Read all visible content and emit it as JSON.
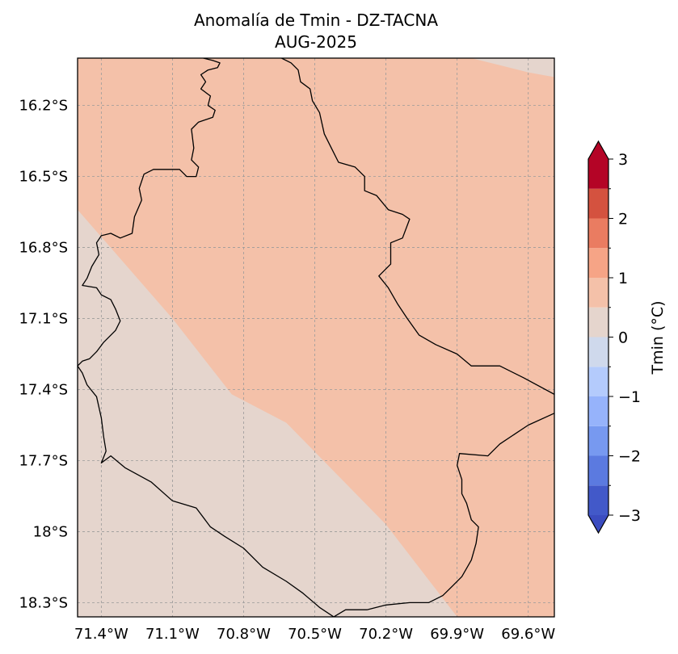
{
  "title": {
    "line1": "Anomalía de Tmin - DZ-TACNA",
    "line2": "AUG-2025"
  },
  "map": {
    "lon_range": [
      -71.5,
      -69.49
    ],
    "lat_range": [
      -18.36,
      -16.0
    ],
    "lon_ticks": [
      {
        "value": -71.4,
        "label": "71.4°W"
      },
      {
        "value": -71.1,
        "label": "71.1°W"
      },
      {
        "value": -70.8,
        "label": "70.8°W"
      },
      {
        "value": -70.5,
        "label": "70.5°W"
      },
      {
        "value": -70.2,
        "label": "70.2°W"
      },
      {
        "value": -69.9,
        "label": "69.9°W"
      },
      {
        "value": -69.6,
        "label": "69.6°W"
      }
    ],
    "lat_ticks": [
      {
        "value": -16.2,
        "label": "16.2°S"
      },
      {
        "value": -16.5,
        "label": "16.5°S"
      },
      {
        "value": -16.8,
        "label": "16.8°S"
      },
      {
        "value": -17.1,
        "label": "17.1°S"
      },
      {
        "value": -17.4,
        "label": "17.4°S"
      },
      {
        "value": -17.7,
        "label": "17.7°S"
      },
      {
        "value": -18.0,
        "label": "18°S"
      },
      {
        "value": -18.3,
        "label": "18.3°S"
      }
    ],
    "gridlines": true,
    "background_fill": {
      "level": "0.5 to 1",
      "color": "#f4c1a9"
    },
    "regions": [
      {
        "name": "anomaly-0-to-0.5",
        "color": "#e5d5cd",
        "polygon": [
          [
            -71.5,
            -16.64
          ],
          [
            -71.1,
            -17.1
          ],
          [
            -70.85,
            -17.42
          ],
          [
            -70.62,
            -17.54
          ],
          [
            -70.2,
            -17.97
          ],
          [
            -69.9,
            -18.36
          ],
          [
            -71.5,
            -18.36
          ]
        ]
      },
      {
        "name": "anomaly-0-to-0.5-corner",
        "color": "#e5d5cd",
        "polygon": [
          [
            -69.84,
            -16.0
          ],
          [
            -69.49,
            -16.0
          ],
          [
            -69.49,
            -16.08
          ],
          [
            -69.6,
            -16.06
          ]
        ]
      }
    ],
    "boundaries": [
      {
        "name": "tacna-boundary",
        "points": [
          [
            -70.97,
            -16.0
          ],
          [
            -70.93,
            -16.01
          ],
          [
            -70.9,
            -16.02
          ],
          [
            -70.91,
            -16.04
          ],
          [
            -70.95,
            -16.05
          ],
          [
            -70.98,
            -16.07
          ],
          [
            -70.96,
            -16.1
          ],
          [
            -70.98,
            -16.13
          ],
          [
            -70.94,
            -16.16
          ],
          [
            -70.95,
            -16.2
          ],
          [
            -70.92,
            -16.22
          ],
          [
            -70.93,
            -16.25
          ],
          [
            -70.99,
            -16.27
          ],
          [
            -71.02,
            -16.3
          ],
          [
            -71.01,
            -16.38
          ],
          [
            -71.02,
            -16.43
          ],
          [
            -70.99,
            -16.46
          ],
          [
            -71.0,
            -16.5
          ],
          [
            -71.04,
            -16.5
          ],
          [
            -71.07,
            -16.47
          ],
          [
            -71.12,
            -16.47
          ],
          [
            -71.18,
            -16.47
          ],
          [
            -71.22,
            -16.49
          ],
          [
            -71.24,
            -16.55
          ],
          [
            -71.23,
            -16.6
          ],
          [
            -71.26,
            -16.67
          ],
          [
            -71.27,
            -16.74
          ],
          [
            -71.32,
            -16.76
          ],
          [
            -71.36,
            -16.74
          ],
          [
            -71.4,
            -16.75
          ],
          [
            -71.42,
            -16.78
          ],
          [
            -71.41,
            -16.83
          ],
          [
            -71.44,
            -16.88
          ],
          [
            -71.46,
            -16.93
          ],
          [
            -71.48,
            -16.96
          ],
          [
            -71.42,
            -16.97
          ],
          [
            -71.4,
            -17.0
          ],
          [
            -71.36,
            -17.02
          ],
          [
            -71.34,
            -17.06
          ],
          [
            -71.32,
            -17.11
          ],
          [
            -71.34,
            -17.15
          ],
          [
            -71.39,
            -17.2
          ],
          [
            -71.42,
            -17.24
          ],
          [
            -71.45,
            -17.27
          ],
          [
            -71.48,
            -17.28
          ],
          [
            -71.5,
            -17.3
          ],
          [
            -71.48,
            -17.33
          ],
          [
            -71.46,
            -17.38
          ],
          [
            -71.42,
            -17.43
          ],
          [
            -71.4,
            -17.52
          ],
          [
            -71.39,
            -17.6
          ],
          [
            -71.38,
            -17.66
          ],
          [
            -71.4,
            -17.71
          ],
          [
            -71.36,
            -17.68
          ],
          [
            -71.3,
            -17.73
          ],
          [
            -71.19,
            -17.79
          ],
          [
            -71.1,
            -17.87
          ],
          [
            -71.0,
            -17.9
          ],
          [
            -70.94,
            -17.98
          ],
          [
            -70.88,
            -18.02
          ],
          [
            -70.8,
            -18.07
          ],
          [
            -70.72,
            -18.15
          ],
          [
            -70.62,
            -18.21
          ],
          [
            -70.55,
            -18.26
          ],
          [
            -70.48,
            -18.32
          ],
          [
            -70.42,
            -18.36
          ]
        ]
      },
      {
        "name": "tacna-east-boundary",
        "points": [
          [
            -70.42,
            -18.36
          ],
          [
            -70.37,
            -18.33
          ],
          [
            -70.28,
            -18.33
          ],
          [
            -70.2,
            -18.31
          ],
          [
            -70.1,
            -18.3
          ],
          [
            -70.02,
            -18.3
          ],
          [
            -69.96,
            -18.27
          ],
          [
            -69.92,
            -18.23
          ],
          [
            -69.88,
            -18.19
          ],
          [
            -69.84,
            -18.12
          ],
          [
            -69.82,
            -18.05
          ],
          [
            -69.81,
            -17.98
          ],
          [
            -69.84,
            -17.95
          ],
          [
            -69.86,
            -17.88
          ],
          [
            -69.88,
            -17.84
          ],
          [
            -69.88,
            -17.78
          ],
          [
            -69.9,
            -17.72
          ],
          [
            -69.89,
            -17.67
          ],
          [
            -69.77,
            -17.68
          ],
          [
            -69.72,
            -17.63
          ],
          [
            -69.6,
            -17.55
          ],
          [
            -69.49,
            -17.5
          ]
        ]
      },
      {
        "name": "tacna-northeast-boundary",
        "points": [
          [
            -70.64,
            -16.0
          ],
          [
            -70.6,
            -16.02
          ],
          [
            -70.57,
            -16.05
          ],
          [
            -70.56,
            -16.1
          ],
          [
            -70.52,
            -16.13
          ],
          [
            -70.51,
            -16.18
          ],
          [
            -70.48,
            -16.23
          ],
          [
            -70.46,
            -16.32
          ],
          [
            -70.43,
            -16.38
          ],
          [
            -70.4,
            -16.44
          ],
          [
            -70.33,
            -16.46
          ],
          [
            -70.29,
            -16.5
          ],
          [
            -70.29,
            -16.56
          ],
          [
            -70.24,
            -16.58
          ],
          [
            -70.19,
            -16.64
          ],
          [
            -70.13,
            -16.66
          ],
          [
            -70.1,
            -16.68
          ],
          [
            -70.13,
            -16.76
          ],
          [
            -70.18,
            -16.78
          ],
          [
            -70.18,
            -16.87
          ],
          [
            -70.23,
            -16.92
          ],
          [
            -70.19,
            -16.97
          ],
          [
            -70.15,
            -17.04
          ],
          [
            -70.11,
            -17.1
          ],
          [
            -70.06,
            -17.17
          ],
          [
            -69.99,
            -17.21
          ],
          [
            -69.9,
            -17.25
          ],
          [
            -69.84,
            -17.3
          ],
          [
            -69.78,
            -17.3
          ],
          [
            -69.72,
            -17.3
          ],
          [
            -69.62,
            -17.35
          ],
          [
            -69.49,
            -17.42
          ]
        ]
      }
    ]
  },
  "colorbar": {
    "label": "Tmin (°C)",
    "min": -3,
    "max": 3,
    "levels": [
      {
        "from": -3.0,
        "to": -2.5,
        "color": "#4259c9"
      },
      {
        "from": -2.5,
        "to": -2.0,
        "color": "#5b7ae0"
      },
      {
        "from": -2.0,
        "to": -1.5,
        "color": "#7799f0"
      },
      {
        "from": -1.5,
        "to": -1.0,
        "color": "#96b3fb"
      },
      {
        "from": -1.0,
        "to": -0.5,
        "color": "#b4cbfc"
      },
      {
        "from": -0.5,
        "to": 0.0,
        "color": "#cfd9ec"
      },
      {
        "from": 0.0,
        "to": 0.5,
        "color": "#e5d5cd"
      },
      {
        "from": 0.5,
        "to": 1.0,
        "color": "#f4c1a9"
      },
      {
        "from": 1.0,
        "to": 1.5,
        "color": "#f6a486"
      },
      {
        "from": 1.5,
        "to": 2.0,
        "color": "#ea7c61"
      },
      {
        "from": 2.0,
        "to": 2.5,
        "color": "#d4523f"
      },
      {
        "from": 2.5,
        "to": 3.0,
        "color": "#b40426"
      }
    ],
    "extend_low_color": "#3b4cc0",
    "extend_high_color": "#b40426",
    "ticks": [
      {
        "value": 3,
        "label": "3"
      },
      {
        "value": 2,
        "label": "2"
      },
      {
        "value": 1,
        "label": "1"
      },
      {
        "value": 0,
        "label": "0"
      },
      {
        "value": -1,
        "label": "−1"
      },
      {
        "value": -2,
        "label": "−2"
      },
      {
        "value": -3,
        "label": "−3"
      }
    ]
  }
}
